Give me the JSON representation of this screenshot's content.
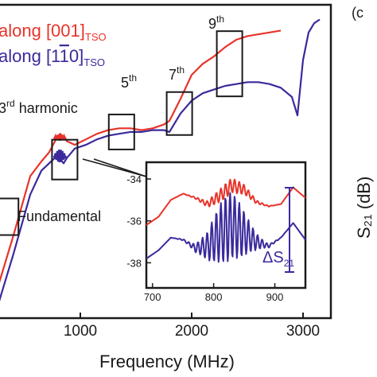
{
  "chart_data": [
    {
      "type": "line",
      "xlabel": "Frequency (MHz)",
      "ylabel": "S₂₁ (dB)",
      "x_ticks": [
        1000,
        2000,
        3000
      ],
      "xlim": [
        250,
        3250
      ],
      "ylim": [
        -45,
        -28
      ],
      "series": [
        {
          "name": "along [001]",
          "name_sub": "TSO",
          "color": "#e8332a",
          "x": [
            250,
            400,
            550,
            650,
            720,
            790,
            820,
            850,
            880,
            950,
            1050,
            1150,
            1250,
            1350,
            1450,
            1550,
            1650,
            1750,
            1800,
            1900,
            2000,
            2100,
            2200,
            2300,
            2400,
            2500,
            2600,
            2700,
            2800
          ],
          "y": [
            -43.5,
            -40.5,
            -37.3,
            -36.5,
            -36.0,
            -35.2,
            -35.0,
            -35.2,
            -35.4,
            -35.6,
            -35.3,
            -35.0,
            -34.8,
            -34.7,
            -34.7,
            -34.8,
            -34.7,
            -34.5,
            -34.3,
            -33.1,
            -31.8,
            -31.2,
            -30.8,
            -30.3,
            -29.9,
            -29.7,
            -29.6,
            -29.5,
            -29.4
          ]
        },
        {
          "name": "along [1-10]",
          "name_display": "along [1",
          "name_bar": "1",
          "name_rest": "0]",
          "name_sub": "TSO",
          "color": "#3a2a9c",
          "x": [
            250,
            400,
            550,
            650,
            720,
            790,
            820,
            850,
            880,
            950,
            1050,
            1150,
            1250,
            1350,
            1450,
            1550,
            1650,
            1750,
            1800,
            1900,
            2000,
            2100,
            2200,
            2300,
            2400,
            2500,
            2600,
            2700,
            2800,
            2900,
            2950,
            3000,
            3050,
            3100,
            3150
          ],
          "y": [
            -44.5,
            -41.5,
            -38.3,
            -37.0,
            -36.6,
            -36.2,
            -36.4,
            -36.6,
            -36.3,
            -35.8,
            -35.6,
            -35.3,
            -35.1,
            -35.0,
            -34.9,
            -34.9,
            -34.8,
            -34.8,
            -34.9,
            -33.9,
            -33.2,
            -32.8,
            -32.6,
            -32.4,
            -32.3,
            -32.2,
            -32.2,
            -32.3,
            -32.5,
            -33.0,
            -34.0,
            -31.0,
            -29.5,
            -29.0,
            -28.8
          ]
        }
      ],
      "annotations": [
        "Fundamental",
        "3rd harmonic",
        "5th",
        "7th",
        "9th"
      ]
    },
    {
      "type": "line",
      "inset": true,
      "x_ticks": [
        700,
        800,
        900
      ],
      "y_ticks": [
        -34,
        -36,
        -38
      ],
      "xlim": [
        690,
        950
      ],
      "ylim": [
        -39.2,
        -33.2
      ],
      "annotation": "ΔS21",
      "annotation_main": "ΔS",
      "annotation_sub": "21",
      "series": [
        {
          "name": "along [001]",
          "color": "#e8332a",
          "x": [
            690,
            710,
            730,
            750,
            770,
            790,
            810,
            830,
            850,
            870,
            890,
            910,
            930,
            950
          ],
          "y": [
            -36.2,
            -35.8,
            -35.0,
            -34.7,
            -34.9,
            -35.2,
            -34.8,
            -34.3,
            -34.5,
            -35.1,
            -35.3,
            -35.2,
            -34.4,
            -34.9
          ]
        },
        {
          "name": "along [1-10]",
          "color": "#3a2a9c",
          "x": [
            690,
            710,
            730,
            750,
            770,
            790,
            810,
            830,
            850,
            870,
            890,
            910,
            930,
            950
          ],
          "y": [
            -37.8,
            -37.4,
            -36.8,
            -36.9,
            -37.3,
            -37.2,
            -36.6,
            -36.2,
            -36.6,
            -37.0,
            -37.2,
            -36.8,
            -36.1,
            -36.9
          ]
        }
      ]
    }
  ],
  "panel_label": "(c"
}
